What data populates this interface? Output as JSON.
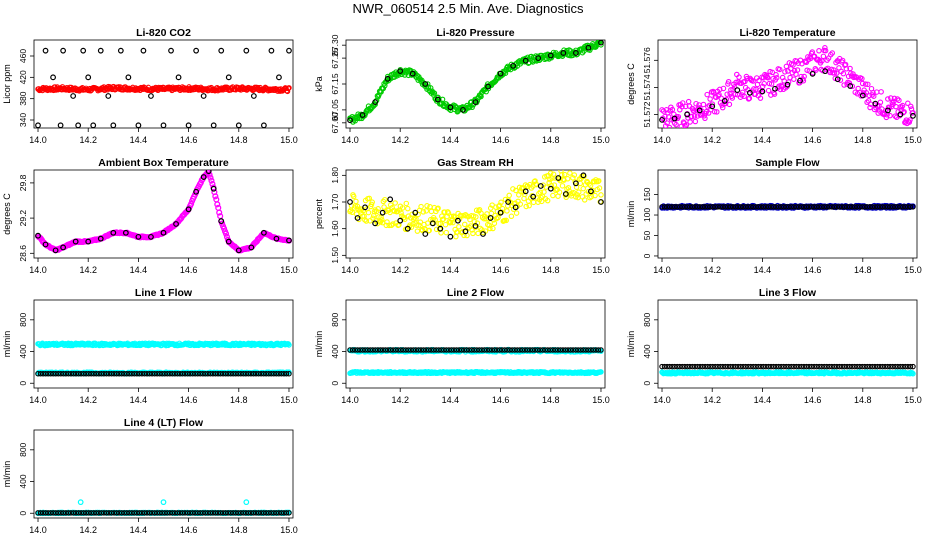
{
  "page": {
    "title": "NWR_060514  2.5 Min. Ave. Diagnostics"
  },
  "chart_data": [
    {
      "type": "scatter",
      "title": "Li-820 CO2",
      "ylabel": "Licor ppm",
      "xlim": [
        14.0,
        15.0
      ],
      "ylim": [
        325,
        490
      ],
      "yticks": [
        340,
        380,
        420,
        460
      ],
      "xticks": [
        14.0,
        14.2,
        14.4,
        14.6,
        14.8,
        15.0
      ],
      "series": [
        {
          "color": "#ff0000",
          "kind": "band",
          "x": [
            14.0,
            14.1,
            14.2,
            14.3,
            14.4,
            14.5,
            14.6,
            14.7,
            14.8,
            14.9,
            15.0
          ],
          "values": [
            398,
            399,
            397,
            400,
            399,
            398,
            399,
            398,
            399,
            398,
            397
          ]
        },
        {
          "color": "#000000",
          "kind": "points",
          "x": [
            14.0,
            14.03,
            14.06,
            14.09,
            14.1,
            14.14,
            14.16,
            14.18,
            14.2,
            14.22,
            14.25,
            14.28,
            14.3,
            14.33,
            14.36,
            14.4,
            14.42,
            14.45,
            14.5,
            14.53,
            14.56,
            14.6,
            14.63,
            14.66,
            14.7,
            14.73,
            14.76,
            14.8,
            14.83,
            14.86,
            14.9,
            14.93,
            14.96,
            15.0
          ],
          "values": [
            330,
            470,
            420,
            330,
            470,
            385,
            330,
            470,
            420,
            330,
            470,
            385,
            330,
            470,
            420,
            330,
            470,
            385,
            330,
            470,
            420,
            330,
            470,
            385,
            330,
            470,
            420,
            330,
            470,
            385,
            330,
            470,
            420,
            470
          ]
        }
      ]
    },
    {
      "type": "scatter",
      "title": "Li-820 Pressure",
      "ylabel": "kPa",
      "xlim": [
        14.0,
        15.0
      ],
      "ylim": [
        66.98,
        67.32
      ],
      "yticks": [
        67.0,
        67.05,
        67.15,
        67.25,
        67.3
      ],
      "ytick_labels": [
        "67.00",
        "67.05",
        "67.15",
        "67.25",
        "67.30"
      ],
      "xticks": [
        14.0,
        14.2,
        14.4,
        14.6,
        14.8,
        15.0
      ],
      "series": [
        {
          "color": "#00cc00",
          "kind": "band",
          "spread": 0.012,
          "x": [
            14.0,
            14.05,
            14.1,
            14.15,
            14.2,
            14.25,
            14.3,
            14.35,
            14.4,
            14.45,
            14.5,
            14.55,
            14.6,
            14.65,
            14.7,
            14.75,
            14.8,
            14.85,
            14.9,
            14.95,
            15.0
          ],
          "values": [
            67.01,
            67.03,
            67.08,
            67.17,
            67.2,
            67.19,
            67.15,
            67.09,
            67.06,
            67.05,
            67.08,
            67.14,
            67.19,
            67.22,
            67.24,
            67.25,
            67.26,
            67.27,
            67.27,
            67.29,
            67.31
          ]
        },
        {
          "color": "#000000",
          "kind": "points",
          "x": [
            14.0,
            14.05,
            14.1,
            14.15,
            14.2,
            14.25,
            14.3,
            14.35,
            14.4,
            14.45,
            14.5,
            14.55,
            14.6,
            14.65,
            14.7,
            14.75,
            14.8,
            14.85,
            14.9,
            14.95,
            15.0
          ],
          "values": [
            67.01,
            67.03,
            67.08,
            67.17,
            67.2,
            67.19,
            67.15,
            67.09,
            67.06,
            67.05,
            67.08,
            67.14,
            67.19,
            67.22,
            67.24,
            67.25,
            67.26,
            67.27,
            67.27,
            67.29,
            67.31
          ]
        }
      ]
    },
    {
      "type": "scatter",
      "title": "Li-820 Temperature",
      "ylabel": "degrees C",
      "xlim": [
        14.0,
        15.0
      ],
      "ylim": [
        51.571,
        51.5775
      ],
      "yticks": [
        51.572,
        51.574,
        51.576
      ],
      "ytick_labels": [
        "51.572",
        "51.574",
        "51.576"
      ],
      "xticks": [
        14.0,
        14.2,
        14.4,
        14.6,
        14.8,
        15.0
      ],
      "series": [
        {
          "color": "#ff00ff",
          "kind": "band",
          "spread": 0.0009,
          "x": [
            14.0,
            14.05,
            14.1,
            14.15,
            14.2,
            14.25,
            14.3,
            14.35,
            14.4,
            14.45,
            14.5,
            14.55,
            14.6,
            14.65,
            14.7,
            14.75,
            14.8,
            14.85,
            14.9,
            14.95,
            15.0
          ],
          "values": [
            51.5717,
            51.5718,
            51.5721,
            51.5724,
            51.5728,
            51.5733,
            51.5742,
            51.5739,
            51.5741,
            51.5744,
            51.5749,
            51.5752,
            51.5758,
            51.5762,
            51.5754,
            51.5747,
            51.5738,
            51.5731,
            51.5725,
            51.5722,
            51.5721
          ]
        },
        {
          "color": "#000000",
          "kind": "points",
          "x": [
            14.0,
            14.05,
            14.1,
            14.15,
            14.2,
            14.25,
            14.3,
            14.35,
            14.4,
            14.45,
            14.5,
            14.55,
            14.6,
            14.65,
            14.7,
            14.75,
            14.8,
            14.85,
            14.9,
            14.95,
            15.0
          ],
          "values": [
            51.5716,
            51.5717,
            51.572,
            51.5723,
            51.5726,
            51.573,
            51.5738,
            51.5736,
            51.5737,
            51.5739,
            51.5742,
            51.5745,
            51.575,
            51.5752,
            51.5746,
            51.5741,
            51.5734,
            51.5728,
            51.5723,
            51.572,
            51.5719
          ]
        }
      ]
    },
    {
      "type": "scatter",
      "title": "Ambient Box Temperature",
      "ylabel": "degrees C",
      "xlim": [
        14.0,
        15.0
      ],
      "ylim": [
        28.52,
        30.02
      ],
      "yticks": [
        28.6,
        29.2,
        29.8
      ],
      "ytick_labels": [
        "28.6",
        "29.2",
        "29.8"
      ],
      "xticks": [
        14.0,
        14.2,
        14.4,
        14.6,
        14.8,
        15.0
      ],
      "series": [
        {
          "color": "#ff00ff",
          "kind": "line",
          "x": [
            14.0,
            14.03,
            14.07,
            14.1,
            14.15,
            14.2,
            14.25,
            14.3,
            14.35,
            14.4,
            14.45,
            14.5,
            14.55,
            14.6,
            14.63,
            14.66,
            14.68,
            14.7,
            14.73,
            14.76,
            14.8,
            14.85,
            14.9,
            14.95,
            15.0
          ],
          "values": [
            28.9,
            28.75,
            28.65,
            28.7,
            28.8,
            28.8,
            28.85,
            28.95,
            28.95,
            28.88,
            28.88,
            28.95,
            29.1,
            29.35,
            29.65,
            29.9,
            30.0,
            29.7,
            29.15,
            28.8,
            28.65,
            28.7,
            28.95,
            28.85,
            28.82
          ]
        },
        {
          "color": "#000000",
          "kind": "points",
          "x": [
            14.0,
            14.03,
            14.07,
            14.1,
            14.15,
            14.2,
            14.25,
            14.3,
            14.35,
            14.4,
            14.45,
            14.5,
            14.55,
            14.6,
            14.63,
            14.66,
            14.68,
            14.7,
            14.73,
            14.76,
            14.8,
            14.85,
            14.9,
            14.95,
            15.0
          ],
          "values": [
            28.9,
            28.75,
            28.65,
            28.7,
            28.8,
            28.8,
            28.85,
            28.95,
            28.95,
            28.88,
            28.88,
            28.95,
            29.1,
            29.35,
            29.65,
            29.9,
            30.0,
            29.7,
            29.15,
            28.8,
            28.65,
            28.7,
            28.95,
            28.85,
            28.82
          ]
        }
      ]
    },
    {
      "type": "scatter",
      "title": "Gas Stream RH",
      "ylabel": "percent",
      "xlim": [
        14.0,
        15.0
      ],
      "ylim": [
        1.49,
        1.82
      ],
      "yticks": [
        1.5,
        1.6,
        1.7,
        1.8
      ],
      "ytick_labels": [
        "1.50",
        "1.60",
        "1.70",
        "1.80"
      ],
      "xticks": [
        14.0,
        14.2,
        14.4,
        14.6,
        14.8,
        15.0
      ],
      "series": [
        {
          "color": "#ffff00",
          "kind": "band",
          "spread": 0.05,
          "x": [
            14.0,
            14.05,
            14.1,
            14.15,
            14.2,
            14.25,
            14.3,
            14.35,
            14.4,
            14.45,
            14.5,
            14.55,
            14.6,
            14.65,
            14.7,
            14.75,
            14.8,
            14.85,
            14.9,
            14.95,
            15.0
          ],
          "values": [
            1.68,
            1.67,
            1.66,
            1.66,
            1.65,
            1.64,
            1.64,
            1.63,
            1.62,
            1.62,
            1.62,
            1.64,
            1.66,
            1.7,
            1.72,
            1.74,
            1.76,
            1.77,
            1.76,
            1.75,
            1.73
          ]
        },
        {
          "color": "#000000",
          "kind": "points",
          "x": [
            14.0,
            14.03,
            14.06,
            14.1,
            14.13,
            14.16,
            14.2,
            14.23,
            14.26,
            14.3,
            14.33,
            14.36,
            14.4,
            14.43,
            14.46,
            14.5,
            14.53,
            14.56,
            14.6,
            14.63,
            14.66,
            14.7,
            14.73,
            14.76,
            14.8,
            14.83,
            14.86,
            14.9,
            14.93,
            14.96,
            15.0
          ],
          "values": [
            1.7,
            1.64,
            1.68,
            1.62,
            1.66,
            1.71,
            1.63,
            1.6,
            1.66,
            1.58,
            1.62,
            1.6,
            1.57,
            1.63,
            1.59,
            1.61,
            1.58,
            1.64,
            1.66,
            1.7,
            1.68,
            1.74,
            1.72,
            1.76,
            1.75,
            1.79,
            1.73,
            1.77,
            1.8,
            1.74,
            1.7
          ]
        }
      ]
    },
    {
      "type": "scatter",
      "title": "Sample Flow",
      "ylabel": "ml/min",
      "xlim": [
        14.0,
        15.0
      ],
      "ylim": [
        -5,
        210
      ],
      "yticks": [
        0,
        50,
        100,
        150
      ],
      "xticks": [
        14.0,
        14.2,
        14.4,
        14.6,
        14.8,
        15.0
      ],
      "series": [
        {
          "color": "#0000cc",
          "kind": "band",
          "spread": 3,
          "x": [
            14.0,
            15.0
          ],
          "values": [
            120,
            120
          ]
        },
        {
          "color": "#000000",
          "kind": "dense",
          "x": [
            14.0,
            15.0
          ],
          "values": [
            120,
            120
          ]
        }
      ]
    },
    {
      "type": "scatter",
      "title": "Line 1 Flow",
      "ylabel": "ml/min",
      "xlim": [
        14.0,
        15.0
      ],
      "ylim": [
        -60,
        1050
      ],
      "yticks": [
        0,
        400,
        800
      ],
      "xticks": [
        14.0,
        14.2,
        14.4,
        14.6,
        14.8,
        15.0
      ],
      "series": [
        {
          "color": "#00ffff",
          "kind": "band",
          "spread": 15,
          "x": [
            14.0,
            15.0
          ],
          "values": [
            490,
            490
          ]
        },
        {
          "color": "#00ffff",
          "kind": "band",
          "spread": 10,
          "x": [
            14.0,
            15.0
          ],
          "values": [
            130,
            130
          ]
        },
        {
          "color": "#000000",
          "kind": "dense",
          "x": [
            14.0,
            15.0
          ],
          "values": [
            120,
            120
          ]
        }
      ]
    },
    {
      "type": "scatter",
      "title": "Line 2 Flow",
      "ylabel": "ml/min",
      "xlim": [
        14.0,
        15.0
      ],
      "ylim": [
        -60,
        1050
      ],
      "yticks": [
        0,
        400,
        800
      ],
      "xticks": [
        14.0,
        14.2,
        14.4,
        14.6,
        14.8,
        15.0
      ],
      "series": [
        {
          "color": "#00ffff",
          "kind": "band",
          "spread": 15,
          "x": [
            14.0,
            15.0
          ],
          "values": [
            410,
            410
          ]
        },
        {
          "color": "#00ffff",
          "kind": "band",
          "spread": 10,
          "x": [
            14.0,
            15.0
          ],
          "values": [
            135,
            135
          ]
        },
        {
          "color": "#000000",
          "kind": "dense",
          "x": [
            14.0,
            15.0
          ],
          "values": [
            420,
            420
          ]
        }
      ]
    },
    {
      "type": "scatter",
      "title": "Line 3 Flow",
      "ylabel": "ml/min",
      "xlim": [
        14.0,
        15.0
      ],
      "ylim": [
        -60,
        1050
      ],
      "yticks": [
        0,
        400,
        800
      ],
      "xticks": [
        14.0,
        14.2,
        14.4,
        14.6,
        14.8,
        15.0
      ],
      "series": [
        {
          "color": "#00ffff",
          "kind": "band",
          "spread": 10,
          "x": [
            14.0,
            15.0
          ],
          "values": [
            130,
            130
          ]
        },
        {
          "color": "#000000",
          "kind": "dense",
          "x": [
            14.0,
            15.0
          ],
          "values": [
            210,
            210
          ]
        }
      ]
    },
    {
      "type": "scatter",
      "title": "Line 4 (LT) Flow",
      "ylabel": "ml/min",
      "xlim": [
        14.0,
        15.0
      ],
      "ylim": [
        -60,
        1050
      ],
      "yticks": [
        0,
        400,
        800
      ],
      "xticks": [
        14.0,
        14.2,
        14.4,
        14.6,
        14.8,
        15.0
      ],
      "series": [
        {
          "color": "#00ffff",
          "kind": "band",
          "spread": 6,
          "x": [
            14.0,
            15.0
          ],
          "values": [
            5,
            5
          ]
        },
        {
          "color": "#00ffff",
          "kind": "points",
          "x": [
            14.17,
            14.5,
            14.83
          ],
          "values": [
            140,
            140,
            140
          ]
        },
        {
          "color": "#000000",
          "kind": "dense",
          "x": [
            14.0,
            15.0
          ],
          "values": [
            5,
            5
          ]
        }
      ]
    }
  ]
}
